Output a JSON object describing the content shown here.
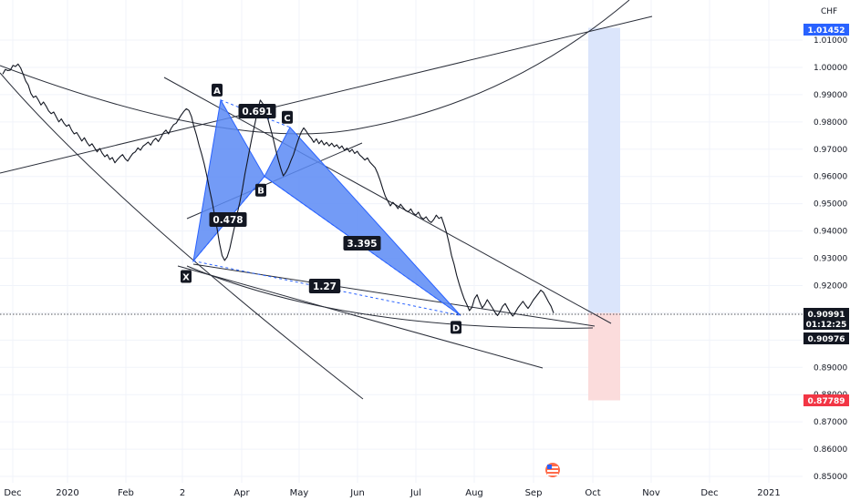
{
  "chart_data": {
    "type": "line",
    "instrument": {
      "currency": "CHF"
    },
    "x_axis": {
      "ticks": [
        "Dec",
        "2020",
        "Feb",
        "2",
        "Apr",
        "May",
        "Jun",
        "Jul",
        "Aug",
        "Sep",
        "Oct",
        "Nov",
        "Dec",
        "2021"
      ]
    },
    "y_axis": {
      "min": 0.85,
      "max": 1.02,
      "ticks": [
        "0.85000",
        "0.86000",
        "0.87000",
        "0.88000",
        "0.89000",
        "0.90000",
        "0.91000",
        "0.92000",
        "0.93000",
        "0.94000",
        "0.95000",
        "0.96000",
        "0.97000",
        "0.98000",
        "0.99000",
        "1.00000",
        "1.01000"
      ]
    },
    "price_tags": [
      {
        "value": 1.01452,
        "text": "1.01452",
        "color": "#2962ff"
      },
      {
        "value": 0.90991,
        "text": "0.90991",
        "color": "#131722"
      },
      {
        "text": "01:12:25",
        "color": "#131722"
      },
      {
        "value": 0.90976,
        "text": "0.90976",
        "color": "#131722"
      },
      {
        "value": 0.87789,
        "text": "0.87789",
        "color": "#f23645"
      }
    ],
    "harmonic_pattern": {
      "points": [
        {
          "label": "X",
          "value": 0.929
        },
        {
          "label": "A",
          "value": 0.988
        },
        {
          "label": "B",
          "value": 0.96
        },
        {
          "label": "C",
          "value": 0.978
        },
        {
          "label": "D",
          "value": 0.909
        }
      ],
      "ratios": [
        "0.691",
        "0.478",
        "3.395",
        "1.27"
      ],
      "fill_color": "#5b8af5"
    },
    "position": {
      "entry": 0.90991,
      "target": 1.01452,
      "stop": 0.87789
    },
    "series": [
      {
        "values": [
          0.9975,
          0.9992,
          0.9988,
          0.999,
          1.0007,
          1.0003,
          1.0012,
          0.9998,
          0.9975,
          0.995,
          0.9935,
          0.9905,
          0.989,
          0.9895,
          0.988,
          0.9862,
          0.9873,
          0.9858,
          0.984,
          0.983,
          0.9836,
          0.9818,
          0.98,
          0.9811,
          0.9795,
          0.9784,
          0.979,
          0.977,
          0.9756,
          0.9761,
          0.9746,
          0.973,
          0.9742,
          0.9725,
          0.9712,
          0.972,
          0.9705,
          0.969,
          0.9703,
          0.9685,
          0.9672,
          0.968,
          0.9662,
          0.9669,
          0.965,
          0.9662,
          0.9672,
          0.968,
          0.9665,
          0.9656,
          0.9671,
          0.9684,
          0.969,
          0.9705,
          0.9696,
          0.9711,
          0.9718,
          0.9726,
          0.9715,
          0.9731,
          0.974,
          0.9728,
          0.9743,
          0.976,
          0.977,
          0.9756,
          0.9776,
          0.979,
          0.9795,
          0.981,
          0.9825,
          0.9838,
          0.9848,
          0.9842,
          0.982,
          0.9782,
          0.9751,
          0.9714,
          0.9682,
          0.9646,
          0.9604,
          0.9556,
          0.9512,
          0.9462,
          0.9411,
          0.9354,
          0.931,
          0.9292,
          0.9305,
          0.9335,
          0.9378,
          0.942,
          0.9466,
          0.9508,
          0.9556,
          0.961,
          0.9658,
          0.9708,
          0.9755,
          0.9798,
          0.9845,
          0.988,
          0.9867,
          0.9844,
          0.981,
          0.9775,
          0.9741,
          0.97,
          0.9662,
          0.963,
          0.9602,
          0.9615,
          0.9633,
          0.9658,
          0.968,
          0.971,
          0.9738,
          0.9762,
          0.9778,
          0.9766,
          0.9751,
          0.974,
          0.9725,
          0.9738,
          0.972,
          0.9732,
          0.9716,
          0.9725,
          0.9712,
          0.9722,
          0.9709,
          0.9716,
          0.9703,
          0.9712,
          0.9696,
          0.9704,
          0.969,
          0.9699,
          0.9684,
          0.9692,
          0.9678,
          0.967,
          0.966,
          0.9668,
          0.9652,
          0.9642,
          0.9632,
          0.9611,
          0.9585,
          0.9556,
          0.9528,
          0.951,
          0.9492,
          0.9505,
          0.9495,
          0.9482,
          0.9498,
          0.9486,
          0.9475,
          0.947,
          0.9481,
          0.9465,
          0.9458,
          0.9469,
          0.945,
          0.9444,
          0.9452,
          0.9438,
          0.9431,
          0.9442,
          0.9458,
          0.9446,
          0.9451,
          0.9424,
          0.9394,
          0.9354,
          0.931,
          0.9278,
          0.9238,
          0.9205,
          0.9176,
          0.915,
          0.913,
          0.9108,
          0.912,
          0.9152,
          0.9166,
          0.914,
          0.9118,
          0.913,
          0.9148,
          0.9133,
          0.9118,
          0.9102,
          0.909,
          0.9105,
          0.9124,
          0.9134,
          0.9117,
          0.91,
          0.9088,
          0.9102,
          0.9118,
          0.913,
          0.9142,
          0.9128,
          0.9116,
          0.913,
          0.9146,
          0.9158,
          0.917,
          0.9183,
          0.9175,
          0.9158,
          0.914,
          0.9124,
          0.9099
        ]
      }
    ]
  }
}
